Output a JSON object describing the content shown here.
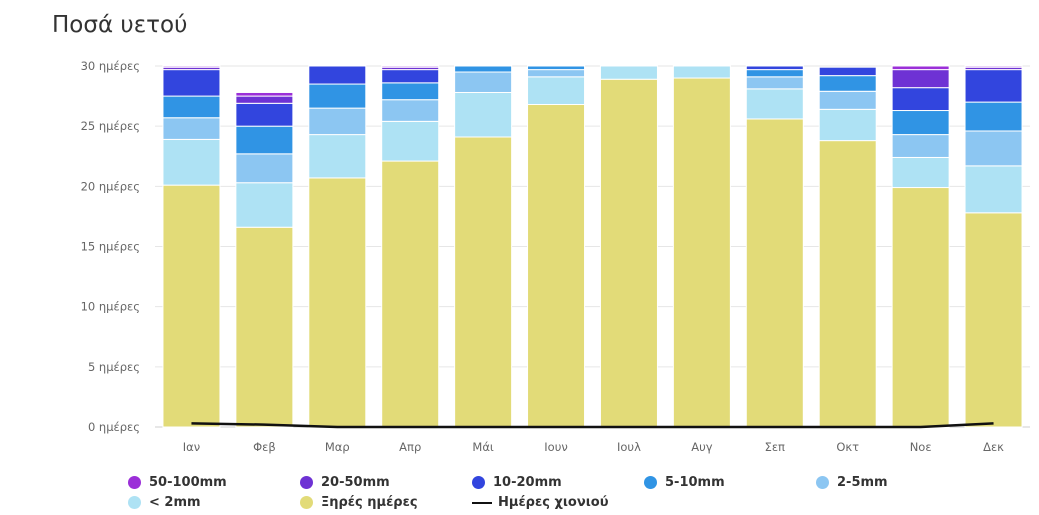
{
  "page": {
    "title": "Ποσά υετού"
  },
  "chart_data": {
    "type": "bar",
    "stacked": true,
    "title": "Ποσά υετού",
    "categories": [
      "Ιαν",
      "Φεβ",
      "Μαρ",
      "Απρ",
      "Μάι",
      "Ιουν",
      "Ιουλ",
      "Αυγ",
      "Σεπ",
      "Οκτ",
      "Νοε",
      "Δεκ"
    ],
    "y_tick_labels": [
      "0 ημέρες",
      "5 ημέρες",
      "10 ημέρες",
      "15 ημέρες",
      "20 ημέρες",
      "25 ημέρες",
      "30 ημέρες"
    ],
    "ylim": [
      0,
      30
    ],
    "grid": true,
    "legend_position": "bottom",
    "series": [
      {
        "name": "Ξηρές ημέρες",
        "color": "#e2db78",
        "values": [
          20.1,
          16.6,
          20.7,
          22.1,
          24.1,
          26.8,
          28.9,
          29.0,
          25.6,
          23.8,
          19.9,
          17.8
        ]
      },
      {
        "name": "< 2mm",
        "color": "#aee2f4",
        "values": [
          3.8,
          3.7,
          3.6,
          3.3,
          3.7,
          2.3,
          1.1,
          1.0,
          2.5,
          2.6,
          2.5,
          3.9
        ]
      },
      {
        "name": "2-5mm",
        "color": "#8cc6f2",
        "values": [
          1.8,
          2.4,
          2.2,
          1.8,
          1.7,
          0.6,
          0.0,
          0.0,
          1.0,
          1.5,
          1.9,
          2.9
        ]
      },
      {
        "name": "5-10mm",
        "color": "#3094e4",
        "values": [
          1.8,
          2.3,
          2.0,
          1.4,
          0.5,
          0.3,
          0.0,
          0.0,
          0.6,
          1.3,
          2.0,
          2.4
        ]
      },
      {
        "name": "10-20mm",
        "color": "#3245de",
        "values": [
          2.2,
          1.9,
          1.5,
          1.1,
          0.0,
          0.0,
          0.0,
          0.0,
          0.3,
          0.7,
          1.9,
          2.7
        ]
      },
      {
        "name": "20-50mm",
        "color": "#6e32d4",
        "values": [
          0.2,
          0.6,
          0.0,
          0.2,
          0.0,
          0.0,
          0.0,
          0.0,
          0.0,
          0.0,
          1.5,
          0.2
        ]
      },
      {
        "name": "50-100mm",
        "color": "#9b2fd8",
        "values": [
          0.1,
          0.3,
          0.0,
          0.1,
          0.0,
          0.0,
          0.0,
          0.0,
          0.0,
          0.0,
          0.3,
          0.1
        ]
      }
    ],
    "line_series": {
      "name": "Ημέρες χιονιού",
      "color": "#111111",
      "values": [
        0.3,
        0.2,
        0.0,
        0.0,
        0.0,
        0.0,
        0.0,
        0.0,
        0.0,
        0.0,
        0.0,
        0.3
      ]
    },
    "legend_order": [
      "50-100mm",
      "20-50mm",
      "10-20mm",
      "5-10mm",
      "2-5mm",
      "< 2mm",
      "Ξηρές ημέρες",
      "Ημέρες χιονιού"
    ]
  }
}
